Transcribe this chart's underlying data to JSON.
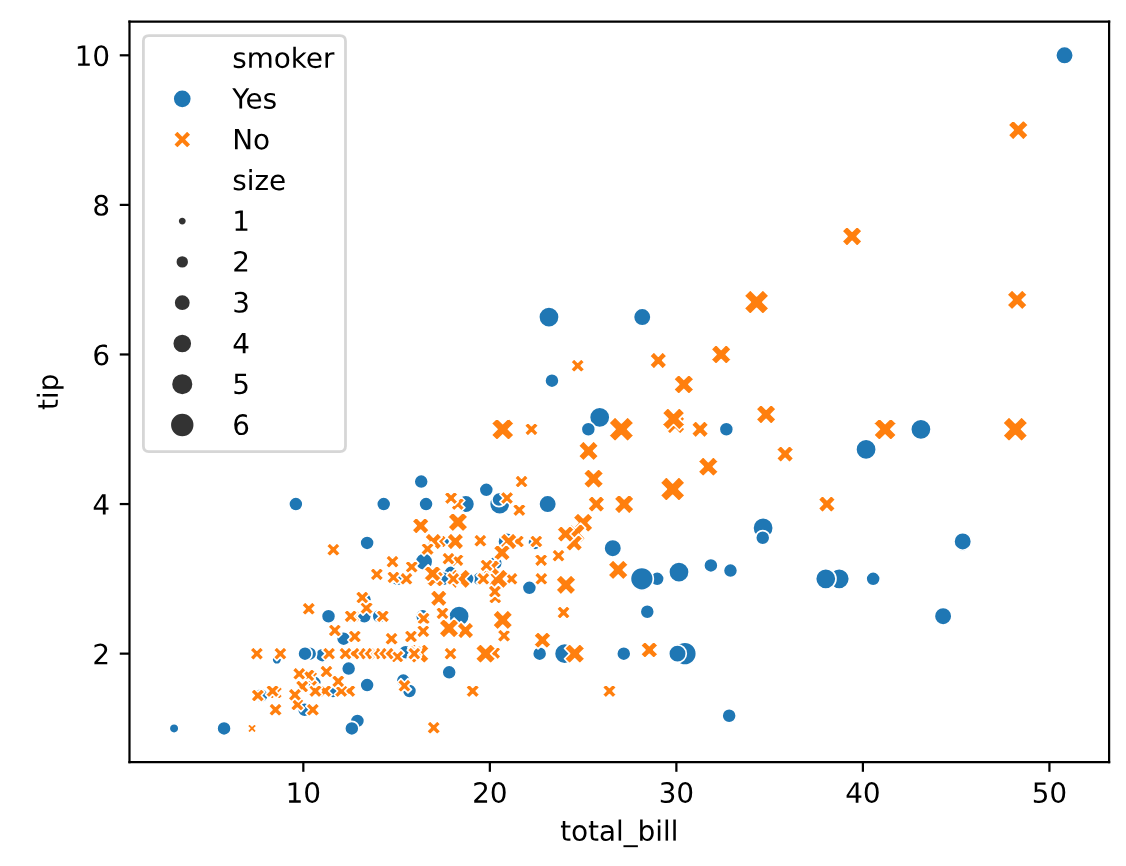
{
  "chart_data": {
    "type": "bubble",
    "xlabel": "total_bill",
    "ylabel": "tip",
    "legend": "top left",
    "legend_title": [
      "smoker",
      "size"
    ],
    "size_legend": [
      1,
      2,
      3,
      4,
      5,
      6
    ],
    "xlim": [
      0.68,
      53.2
    ],
    "xticks": [
      10,
      20,
      30,
      40,
      50
    ],
    "ylim": [
      0.55,
      10.45
    ],
    "yticks": [
      2,
      4,
      6,
      8,
      10
    ],
    "grid": false,
    "series": [
      {
        "name": "Yes",
        "color": "#1f77b4",
        "marker": "circle",
        "x": [
          50.81,
          45.35,
          44.3,
          43.11,
          40.55,
          40.17,
          38.73,
          38.01,
          34.65,
          34.63,
          32.83,
          32.68,
          32.9,
          31.85,
          30.46,
          30.14,
          30.06,
          28.97,
          28.44,
          28.17,
          28.15,
          27.18,
          26.59,
          25.89,
          25.28,
          24.01,
          23.33,
          23.17,
          23.1,
          22.67,
          22.42,
          22.12,
          20.9,
          20.53,
          20.49,
          20.29,
          19.81,
          19.44,
          18.71,
          18.35,
          17.92,
          17.82,
          17.51,
          17.47,
          16.58,
          16.47,
          16.4,
          16.32,
          15.69,
          15.36,
          15.06,
          14.31,
          14.07,
          13.42,
          13.42,
          13.28,
          13.27,
          12.9,
          12.43,
          12.16,
          11.59,
          11.35,
          11.02,
          10.59,
          10.34,
          10.09,
          9.6,
          10.07,
          8.58,
          7.74,
          5.75,
          3.07,
          15.48,
          12.6,
          18.78
        ],
        "values": [
          10.0,
          3.5,
          2.5,
          5.0,
          3.0,
          4.73,
          3.0,
          3.0,
          3.68,
          3.55,
          1.17,
          5.0,
          3.11,
          3.18,
          2.0,
          3.09,
          2.0,
          3.0,
          2.56,
          6.5,
          3.0,
          2.0,
          3.41,
          5.16,
          5.0,
          2.0,
          5.65,
          6.5,
          4.0,
          2.0,
          3.48,
          2.88,
          3.5,
          4.0,
          4.06,
          3.21,
          4.19,
          3.0,
          4.0,
          2.5,
          3.08,
          1.75,
          3.0,
          3.5,
          4.0,
          3.23,
          2.5,
          4.3,
          1.5,
          1.64,
          3.0,
          4.0,
          2.5,
          3.48,
          1.58,
          2.72,
          2.5,
          1.1,
          1.8,
          2.2,
          1.5,
          2.5,
          1.98,
          1.61,
          2.0,
          2.0,
          4.0,
          1.25,
          1.92,
          1.44,
          1.0,
          1.0,
          2.02,
          1.0,
          3.0
        ],
        "sizes": [
          3,
          3,
          3,
          4,
          2,
          4,
          4,
          4,
          4,
          2,
          2,
          2,
          2,
          2,
          5,
          4,
          3,
          2,
          2,
          3,
          5,
          2,
          3,
          4,
          2,
          4,
          2,
          4,
          3,
          2,
          2,
          2,
          3,
          4,
          2,
          2,
          2,
          2,
          3,
          4,
          2,
          2,
          2,
          2,
          2,
          3,
          2,
          2,
          2,
          2,
          2,
          2,
          2,
          2,
          2,
          2,
          2,
          2,
          2,
          2,
          2,
          2,
          2,
          2,
          2,
          2,
          2,
          2,
          1,
          2,
          2,
          1,
          2,
          2,
          2
        ]
      },
      {
        "name": "No",
        "color": "#ff7f0e",
        "marker": "cross",
        "x": [
          48.33,
          48.27,
          48.17,
          39.42,
          41.19,
          38.07,
          35.83,
          34.81,
          34.3,
          32.4,
          31.71,
          31.27,
          30.4,
          29.8,
          29.93,
          29.85,
          29.03,
          28.55,
          27.05,
          27.2,
          26.88,
          26.41,
          25.71,
          25.56,
          25.29,
          25.0,
          24.71,
          24.59,
          24.55,
          24.52,
          24.08,
          24.06,
          23.95,
          23.68,
          22.82,
          22.76,
          22.75,
          22.49,
          22.23,
          21.7,
          21.58,
          21.5,
          21.16,
          21.01,
          20.92,
          20.76,
          20.69,
          20.69,
          20.65,
          20.45,
          20.29,
          20.27,
          20.23,
          20.08,
          19.82,
          19.77,
          19.65,
          19.49,
          19.08,
          18.69,
          18.43,
          18.29,
          18.28,
          18.26,
          18.04,
          17.92,
          17.89,
          17.81,
          17.78,
          17.46,
          17.31,
          17.26,
          17.07,
          16.99,
          16.97,
          16.93,
          16.66,
          16.45,
          16.43,
          16.29,
          16.21,
          15.98,
          15.95,
          15.81,
          15.77,
          15.53,
          15.42,
          15.04,
          14.83,
          14.78,
          14.73,
          14.52,
          14.26,
          14.15,
          13.94,
          13.81,
          13.51,
          13.39,
          13.37,
          13.16,
          13.03,
          12.76,
          12.69,
          12.66,
          12.54,
          12.46,
          12.26,
          12.03,
          11.87,
          11.69,
          11.61,
          11.38,
          11.24,
          11.17,
          10.65,
          10.51,
          10.33,
          10.29,
          10.27,
          9.94,
          9.78,
          9.68,
          9.55,
          8.77,
          8.52,
          8.51,
          8.35,
          7.56,
          7.51,
          7.25,
          18.15
        ],
        "values": [
          9.0,
          6.73,
          5.0,
          7.58,
          5.0,
          4.0,
          4.67,
          5.2,
          6.7,
          6.0,
          4.5,
          5.0,
          5.6,
          4.2,
          5.07,
          5.14,
          5.92,
          2.05,
          5.0,
          4.0,
          3.12,
          1.5,
          4.0,
          4.34,
          4.71,
          3.75,
          5.85,
          3.61,
          2.0,
          3.48,
          2.92,
          3.6,
          2.55,
          3.31,
          2.18,
          3.0,
          3.25,
          3.5,
          5.0,
          4.3,
          3.92,
          3.5,
          3.0,
          3.5,
          4.08,
          2.24,
          2.45,
          5.0,
          3.35,
          3.0,
          2.75,
          2.83,
          2.01,
          3.15,
          3.18,
          2.0,
          3.0,
          3.51,
          1.5,
          2.31,
          3.0,
          3.76,
          4.0,
          3.25,
          3.0,
          4.08,
          2.0,
          2.34,
          3.27,
          2.54,
          3.5,
          2.74,
          3.0,
          1.01,
          3.5,
          3.07,
          3.4,
          2.47,
          2.3,
          3.71,
          2.0,
          2.03,
          2.0,
          3.16,
          2.23,
          3.0,
          1.57,
          1.96,
          3.02,
          3.23,
          2.2,
          2.0,
          2.5,
          2.0,
          3.06,
          2.0,
          2.0,
          2.61,
          2.0,
          2.75,
          2.0,
          2.23,
          2.0,
          2.5,
          2.5,
          1.5,
          2.0,
          1.5,
          1.63,
          2.31,
          3.39,
          2.0,
          1.76,
          1.5,
          1.5,
          1.25,
          1.67,
          2.6,
          1.71,
          1.56,
          1.73,
          1.32,
          1.45,
          2.0,
          1.48,
          1.25,
          1.5,
          1.44,
          2.0,
          1.0,
          3.5
        ],
        "sizes": [
          4,
          4,
          6,
          4,
          5,
          3,
          3,
          4,
          6,
          4,
          4,
          3,
          4,
          6,
          4,
          5,
          3,
          3,
          6,
          4,
          4,
          2,
          3,
          4,
          4,
          4,
          2,
          4,
          4,
          3,
          4,
          3,
          2,
          2,
          3,
          2,
          2,
          2,
          2,
          2,
          2,
          2,
          2,
          3,
          2,
          2,
          4,
          5,
          3,
          4,
          2,
          2,
          2,
          3,
          2,
          4,
          2,
          2,
          2,
          3,
          4,
          4,
          2,
          2,
          2,
          2,
          2,
          4,
          2,
          2,
          2,
          3,
          3,
          2,
          3,
          3,
          2,
          2,
          2,
          3,
          4,
          2,
          2,
          2,
          2,
          2,
          2,
          2,
          2,
          2,
          2,
          2,
          2,
          2,
          2,
          2,
          2,
          2,
          2,
          2,
          2,
          2,
          2,
          2,
          2,
          2,
          2,
          2,
          2,
          2,
          2,
          2,
          2,
          2,
          2,
          2,
          3,
          2,
          2,
          2,
          2,
          2,
          2,
          2,
          2,
          2,
          2,
          2,
          2,
          1,
          3
        ]
      }
    ]
  }
}
